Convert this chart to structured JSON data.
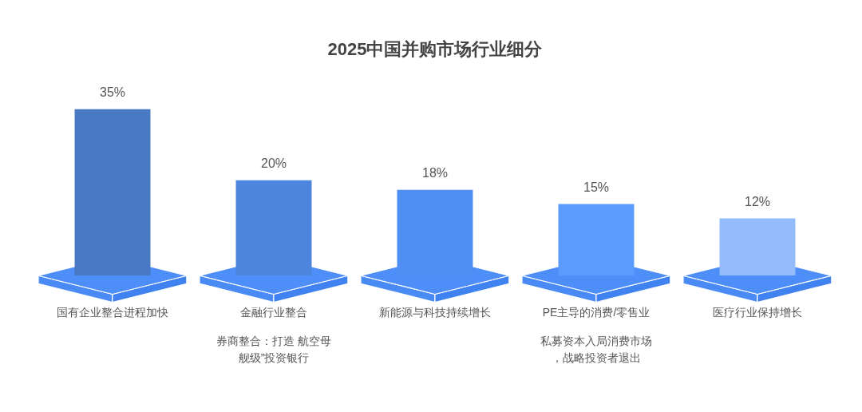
{
  "chart_data": {
    "type": "bar",
    "title": "2025中国并购市场行业细分",
    "categories": [
      "国有企业整合进程加快",
      "金融行业整合",
      "新能源与科技持续增长",
      "PE主导的消费/零售业",
      "医疗行业保持增长"
    ],
    "values": [
      35,
      20,
      18,
      15,
      12
    ],
    "value_labels": [
      "35%",
      "20%",
      "18%",
      "15%",
      "12%"
    ],
    "colors": [
      "#4a79c4",
      "#4f86dd",
      "#4f8ef2",
      "#5b9bfb",
      "#94bbfa"
    ],
    "annotations": [
      "券商整合：打造 航空母舰级”投资银行",
      "私募资本入局消费市场，战略投资者退出"
    ],
    "tick_labels": "x"
  }
}
